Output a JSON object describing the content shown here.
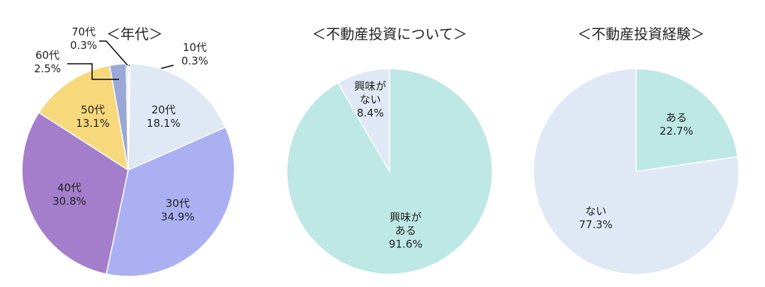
{
  "chart_data": [
    {
      "type": "pie",
      "title": "＜年代＞",
      "categories": [
        "10代",
        "20代",
        "30代",
        "40代",
        "50代",
        "60代",
        "70代"
      ],
      "values": [
        0.3,
        18.1,
        34.9,
        30.8,
        13.1,
        2.5,
        0.3
      ],
      "value_labels": [
        "0.3%",
        "18.1%",
        "34.9%",
        "30.8%",
        "13.1%",
        "2.5%",
        "0.3%"
      ],
      "colors": [
        "#dde8f3",
        "#dfe8f4",
        "#aab0f2",
        "#a47ecb",
        "#f7d97c",
        "#9aa8d8",
        "#c4e6ee"
      ]
    },
    {
      "type": "pie",
      "title": "＜不動産投資について＞",
      "categories": [
        "興味が\nある",
        "興味が\nない"
      ],
      "values": [
        91.6,
        8.4
      ],
      "value_labels": [
        "91.6%",
        "8.4%"
      ],
      "colors": [
        "#bde8e4",
        "#dfe8f4"
      ]
    },
    {
      "type": "pie",
      "title": "＜不動産投資経験＞",
      "categories": [
        "ある",
        "ない"
      ],
      "values": [
        22.7,
        77.3
      ],
      "value_labels": [
        "22.7%",
        "77.3%"
      ],
      "colors": [
        "#bde8e4",
        "#dfe8f4"
      ]
    }
  ]
}
